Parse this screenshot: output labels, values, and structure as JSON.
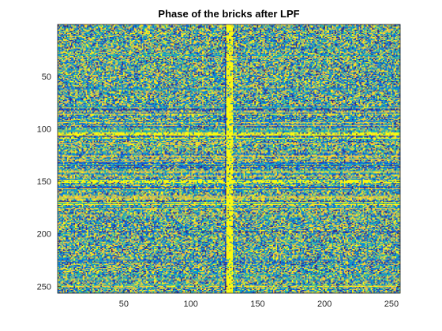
{
  "chart_data": {
    "type": "heatmap",
    "title": "Phase of the bricks after LPF",
    "xlabel": "",
    "ylabel": "",
    "xlim": [
      0.5,
      256.5
    ],
    "ylim": [
      0.5,
      256.5
    ],
    "y_direction": "reverse",
    "grid": false,
    "rows": 256,
    "cols": 256,
    "colormap": [
      "#352a87",
      "#0f5cdd",
      "#1481d6",
      "#06a4ca",
      "#2eb7a4",
      "#87bf77",
      "#d1bb59",
      "#fec832",
      "#f9fb0e"
    ],
    "x_ticks": [
      50,
      100,
      150,
      200,
      250
    ],
    "y_ticks": [
      50,
      100,
      150,
      200,
      250
    ],
    "x_tick_labels": [
      "50",
      "100",
      "150",
      "200",
      "250"
    ],
    "y_tick_labels": [
      "50",
      "100",
      "150",
      "200",
      "250"
    ],
    "structure": {
      "bright_vertical_columns": [
        128,
        130
      ],
      "bright_horizontal_rows": [
        105,
        150
      ],
      "banded_row_ranges": [
        [
          80,
          175
        ]
      ]
    }
  }
}
